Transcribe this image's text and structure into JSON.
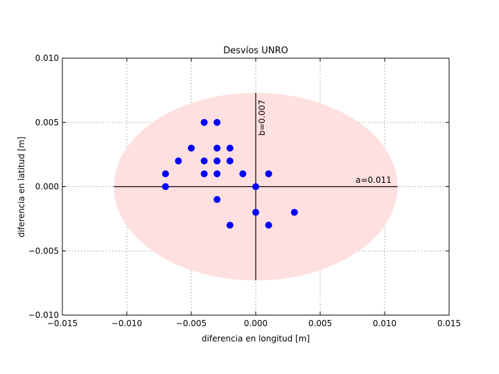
{
  "chart_data": {
    "type": "scatter",
    "title": "Desvíos UNRO",
    "xlabel": "diferencia en longitud [m]",
    "ylabel": "diferencia en latitud [m]",
    "xlim": [
      -0.015,
      0.015
    ],
    "ylim": [
      -0.01,
      0.01
    ],
    "xticks": [
      -0.015,
      -0.01,
      -0.005,
      0.0,
      0.005,
      0.01,
      0.015
    ],
    "xtick_labels": [
      "−0.015",
      "−0.010",
      "−0.005",
      "0.000",
      "0.005",
      "0.010",
      "0.015"
    ],
    "yticks": [
      -0.01,
      -0.005,
      0.0,
      0.005,
      0.01
    ],
    "ytick_labels": [
      "−0.010",
      "−0.005",
      "0.000",
      "0.005",
      "0.010"
    ],
    "grid": true,
    "points": [
      {
        "x": -0.004,
        "y": 0.005
      },
      {
        "x": -0.003,
        "y": 0.005
      },
      {
        "x": -0.005,
        "y": 0.003
      },
      {
        "x": -0.003,
        "y": 0.003
      },
      {
        "x": -0.002,
        "y": 0.003
      },
      {
        "x": -0.006,
        "y": 0.002
      },
      {
        "x": -0.004,
        "y": 0.002
      },
      {
        "x": -0.003,
        "y": 0.002
      },
      {
        "x": -0.002,
        "y": 0.002
      },
      {
        "x": -0.007,
        "y": 0.001
      },
      {
        "x": -0.004,
        "y": 0.001
      },
      {
        "x": -0.003,
        "y": 0.001
      },
      {
        "x": -0.001,
        "y": 0.001
      },
      {
        "x": 0.001,
        "y": 0.001
      },
      {
        "x": -0.007,
        "y": 0.0
      },
      {
        "x": 0.0,
        "y": 0.0
      },
      {
        "x": -0.003,
        "y": -0.001
      },
      {
        "x": 0.0,
        "y": -0.002
      },
      {
        "x": 0.003,
        "y": -0.002
      },
      {
        "x": -0.002,
        "y": -0.003
      },
      {
        "x": 0.001,
        "y": -0.003
      }
    ],
    "point_color": "#0000ff",
    "ellipse": {
      "center": [
        0.0,
        0.0
      ],
      "a": 0.011,
      "b": 0.0073,
      "fill": "#ffe0e0",
      "a_label": "a=0.011",
      "b_label": "b=0.007"
    }
  }
}
